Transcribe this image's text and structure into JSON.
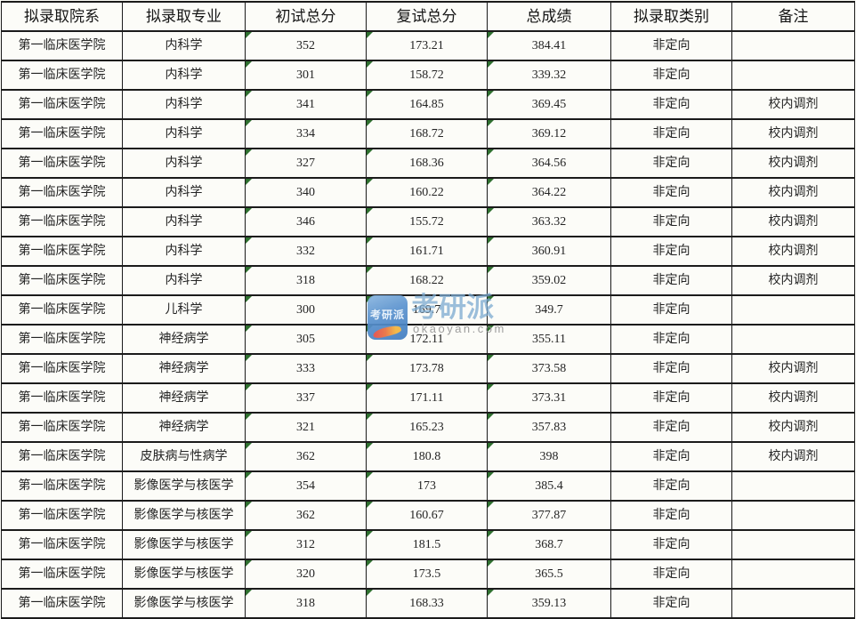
{
  "table": {
    "headers": [
      "拟录取院系",
      "拟录取专业",
      "初试总分",
      "复试总分",
      "总成绩",
      "拟录取类别",
      "备注"
    ],
    "rows": [
      [
        "第一临床医学院",
        "内科学",
        "352",
        "173.21",
        "384.41",
        "非定向",
        ""
      ],
      [
        "第一临床医学院",
        "内科学",
        "301",
        "158.72",
        "339.32",
        "非定向",
        ""
      ],
      [
        "第一临床医学院",
        "内科学",
        "341",
        "164.85",
        "369.45",
        "非定向",
        "校内调剂"
      ],
      [
        "第一临床医学院",
        "内科学",
        "334",
        "168.72",
        "369.12",
        "非定向",
        "校内调剂"
      ],
      [
        "第一临床医学院",
        "内科学",
        "327",
        "168.36",
        "364.56",
        "非定向",
        "校内调剂"
      ],
      [
        "第一临床医学院",
        "内科学",
        "340",
        "160.22",
        "364.22",
        "非定向",
        "校内调剂"
      ],
      [
        "第一临床医学院",
        "内科学",
        "346",
        "155.72",
        "363.32",
        "非定向",
        "校内调剂"
      ],
      [
        "第一临床医学院",
        "内科学",
        "332",
        "161.71",
        "360.91",
        "非定向",
        "校内调剂"
      ],
      [
        "第一临床医学院",
        "内科学",
        "318",
        "168.22",
        "359.02",
        "非定向",
        "校内调剂"
      ],
      [
        "第一临床医学院",
        "儿科学",
        "300",
        "169.7",
        "349.7",
        "非定向",
        ""
      ],
      [
        "第一临床医学院",
        "神经病学",
        "305",
        "172.11",
        "355.11",
        "非定向",
        ""
      ],
      [
        "第一临床医学院",
        "神经病学",
        "333",
        "173.78",
        "373.58",
        "非定向",
        "校内调剂"
      ],
      [
        "第一临床医学院",
        "神经病学",
        "337",
        "171.11",
        "373.31",
        "非定向",
        "校内调剂"
      ],
      [
        "第一临床医学院",
        "神经病学",
        "321",
        "165.23",
        "357.83",
        "非定向",
        "校内调剂"
      ],
      [
        "第一临床医学院",
        "皮肤病与性病学",
        "362",
        "180.8",
        "398",
        "非定向",
        "校内调剂"
      ],
      [
        "第一临床医学院",
        "影像医学与核医学",
        "354",
        "173",
        "385.4",
        "非定向",
        ""
      ],
      [
        "第一临床医学院",
        "影像医学与核医学",
        "362",
        "160.67",
        "377.87",
        "非定向",
        ""
      ],
      [
        "第一临床医学院",
        "影像医学与核医学",
        "312",
        "181.5",
        "368.7",
        "非定向",
        ""
      ],
      [
        "第一临床医学院",
        "影像医学与核医学",
        "320",
        "173.5",
        "365.5",
        "非定向",
        ""
      ],
      [
        "第一临床医学院",
        "影像医学与核医学",
        "318",
        "168.33",
        "359.13",
        "非定向",
        ""
      ]
    ],
    "flagged_columns": [
      2,
      3,
      4
    ],
    "flag_icon": "green-triangle",
    "colors": {
      "border": "#1b1b1b",
      "text": "#242424",
      "flag_green": "#2f7030",
      "background": "#fbfbf6"
    }
  },
  "watermark": {
    "logo_text": "考研派",
    "brand_text": "考研派",
    "domain_text": "okaoyan.com",
    "colors": {
      "logo_blue": "#4a86c8",
      "brand_blue": "#7baad0",
      "domain_gray": "#989898"
    }
  },
  "chart_data": {
    "type": "table",
    "columns": [
      "拟录取院系",
      "拟录取专业",
      "初试总分",
      "复试总分",
      "总成绩",
      "拟录取类别",
      "备注"
    ],
    "rows": [
      [
        "第一临床医学院",
        "内科学",
        352,
        173.21,
        384.41,
        "非定向",
        ""
      ],
      [
        "第一临床医学院",
        "内科学",
        301,
        158.72,
        339.32,
        "非定向",
        ""
      ],
      [
        "第一临床医学院",
        "内科学",
        341,
        164.85,
        369.45,
        "非定向",
        "校内调剂"
      ],
      [
        "第一临床医学院",
        "内科学",
        334,
        168.72,
        369.12,
        "非定向",
        "校内调剂"
      ],
      [
        "第一临床医学院",
        "内科学",
        327,
        168.36,
        364.56,
        "非定向",
        "校内调剂"
      ],
      [
        "第一临床医学院",
        "内科学",
        340,
        160.22,
        364.22,
        "非定向",
        "校内调剂"
      ],
      [
        "第一临床医学院",
        "内科学",
        346,
        155.72,
        363.32,
        "非定向",
        "校内调剂"
      ],
      [
        "第一临床医学院",
        "内科学",
        332,
        161.71,
        360.91,
        "非定向",
        "校内调剂"
      ],
      [
        "第一临床医学院",
        "内科学",
        318,
        168.22,
        359.02,
        "非定向",
        "校内调剂"
      ],
      [
        "第一临床医学院",
        "儿科学",
        300,
        169.7,
        349.7,
        "非定向",
        ""
      ],
      [
        "第一临床医学院",
        "神经病学",
        305,
        172.11,
        355.11,
        "非定向",
        ""
      ],
      [
        "第一临床医学院",
        "神经病学",
        333,
        173.78,
        373.58,
        "非定向",
        "校内调剂"
      ],
      [
        "第一临床医学院",
        "神经病学",
        337,
        171.11,
        373.31,
        "非定向",
        "校内调剂"
      ],
      [
        "第一临床医学院",
        "神经病学",
        321,
        165.23,
        357.83,
        "非定向",
        "校内调剂"
      ],
      [
        "第一临床医学院",
        "皮肤病与性病学",
        362,
        180.8,
        398,
        "非定向",
        "校内调剂"
      ],
      [
        "第一临床医学院",
        "影像医学与核医学",
        354,
        173,
        385.4,
        "非定向",
        ""
      ],
      [
        "第一临床医学院",
        "影像医学与核医学",
        362,
        160.67,
        377.87,
        "非定向",
        ""
      ],
      [
        "第一临床医学院",
        "影像医学与核医学",
        312,
        181.5,
        368.7,
        "非定向",
        ""
      ],
      [
        "第一临床医学院",
        "影像医学与核医学",
        320,
        173.5,
        365.5,
        "非定向",
        ""
      ],
      [
        "第一临床医学院",
        "影像医学与核医学",
        318,
        168.33,
        359.13,
        "非定向",
        ""
      ]
    ]
  }
}
